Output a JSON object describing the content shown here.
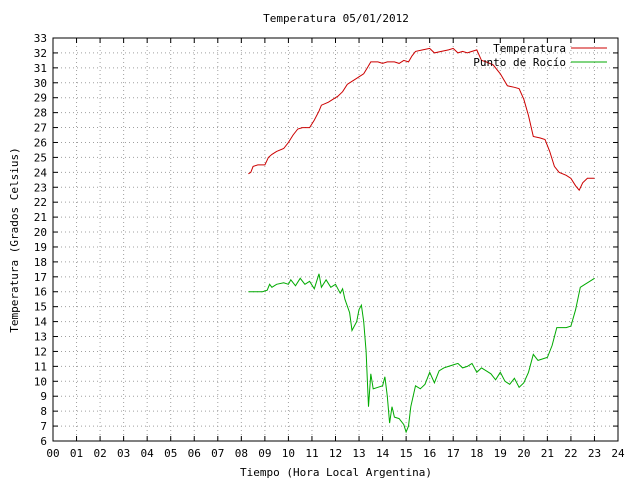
{
  "chart_data": {
    "type": "line",
    "title": "Temperatura 05/01/2012",
    "xlabel": "Tiempo (Hora Local Argentina)",
    "ylabel": "Temperatura (Grados Celsius)",
    "xlim": [
      0,
      24
    ],
    "ylim": [
      6,
      33
    ],
    "xticks": [
      "00",
      "01",
      "02",
      "03",
      "04",
      "05",
      "06",
      "07",
      "08",
      "09",
      "10",
      "11",
      "12",
      "13",
      "14",
      "15",
      "16",
      "17",
      "18",
      "19",
      "20",
      "21",
      "22",
      "23",
      "24"
    ],
    "yticks": [
      6,
      7,
      8,
      9,
      10,
      11,
      12,
      13,
      14,
      15,
      16,
      17,
      18,
      19,
      20,
      21,
      22,
      23,
      24,
      25,
      26,
      27,
      28,
      29,
      30,
      31,
      32,
      33
    ],
    "grid": true,
    "legend_position": "top-right",
    "series": [
      {
        "name": "Temperatura",
        "color": "#cc0000",
        "points": [
          [
            8.3,
            23.9
          ],
          [
            8.4,
            24.0
          ],
          [
            8.5,
            24.4
          ],
          [
            8.7,
            24.5
          ],
          [
            9.0,
            24.5
          ],
          [
            9.15,
            25.0
          ],
          [
            9.3,
            25.2
          ],
          [
            9.5,
            25.4
          ],
          [
            9.8,
            25.6
          ],
          [
            10.0,
            26.0
          ],
          [
            10.2,
            26.5
          ],
          [
            10.4,
            26.9
          ],
          [
            10.6,
            27.0
          ],
          [
            10.9,
            27.0
          ],
          [
            11.1,
            27.5
          ],
          [
            11.3,
            28.1
          ],
          [
            11.4,
            28.5
          ],
          [
            11.7,
            28.7
          ],
          [
            11.9,
            28.9
          ],
          [
            12.1,
            29.1
          ],
          [
            12.3,
            29.4
          ],
          [
            12.5,
            29.9
          ],
          [
            12.7,
            30.1
          ],
          [
            12.9,
            30.3
          ],
          [
            13.0,
            30.4
          ],
          [
            13.2,
            30.6
          ],
          [
            13.35,
            31.0
          ],
          [
            13.5,
            31.4
          ],
          [
            13.8,
            31.4
          ],
          [
            14.0,
            31.3
          ],
          [
            14.2,
            31.4
          ],
          [
            14.5,
            31.4
          ],
          [
            14.7,
            31.3
          ],
          [
            14.9,
            31.5
          ],
          [
            15.1,
            31.4
          ],
          [
            15.25,
            31.8
          ],
          [
            15.4,
            32.1
          ],
          [
            15.7,
            32.2
          ],
          [
            16.0,
            32.3
          ],
          [
            16.2,
            32.0
          ],
          [
            16.5,
            32.1
          ],
          [
            16.8,
            32.2
          ],
          [
            17.0,
            32.3
          ],
          [
            17.2,
            32.0
          ],
          [
            17.4,
            32.1
          ],
          [
            17.6,
            32.0
          ],
          [
            17.8,
            32.1
          ],
          [
            18.0,
            32.2
          ],
          [
            18.2,
            31.5
          ],
          [
            18.4,
            31.4
          ],
          [
            18.7,
            31.2
          ],
          [
            19.0,
            30.6
          ],
          [
            19.3,
            29.8
          ],
          [
            19.6,
            29.7
          ],
          [
            19.8,
            29.6
          ],
          [
            20.0,
            28.9
          ],
          [
            20.2,
            27.8
          ],
          [
            20.4,
            26.4
          ],
          [
            20.7,
            26.3
          ],
          [
            20.9,
            26.2
          ],
          [
            21.1,
            25.4
          ],
          [
            21.3,
            24.4
          ],
          [
            21.5,
            24.0
          ],
          [
            21.8,
            23.8
          ],
          [
            22.0,
            23.6
          ],
          [
            22.2,
            23.1
          ],
          [
            22.35,
            22.8
          ],
          [
            22.5,
            23.3
          ],
          [
            22.7,
            23.6
          ],
          [
            23.0,
            23.6
          ]
        ]
      },
      {
        "name": "Punto de Rocío",
        "color": "#00aa00",
        "points": [
          [
            8.3,
            16.0
          ],
          [
            8.6,
            16.0
          ],
          [
            8.9,
            16.0
          ],
          [
            9.1,
            16.1
          ],
          [
            9.2,
            16.5
          ],
          [
            9.3,
            16.3
          ],
          [
            9.5,
            16.5
          ],
          [
            9.8,
            16.6
          ],
          [
            10.0,
            16.5
          ],
          [
            10.1,
            16.8
          ],
          [
            10.3,
            16.4
          ],
          [
            10.5,
            16.9
          ],
          [
            10.7,
            16.5
          ],
          [
            10.9,
            16.7
          ],
          [
            11.1,
            16.2
          ],
          [
            11.3,
            17.2
          ],
          [
            11.4,
            16.3
          ],
          [
            11.6,
            16.8
          ],
          [
            11.8,
            16.3
          ],
          [
            12.0,
            16.5
          ],
          [
            12.2,
            15.9
          ],
          [
            12.3,
            16.2
          ],
          [
            12.4,
            15.5
          ],
          [
            12.6,
            14.6
          ],
          [
            12.7,
            13.4
          ],
          [
            12.9,
            14.0
          ],
          [
            13.0,
            14.8
          ],
          [
            13.1,
            15.1
          ],
          [
            13.2,
            14.0
          ],
          [
            13.3,
            12.0
          ],
          [
            13.4,
            8.3
          ],
          [
            13.5,
            10.5
          ],
          [
            13.6,
            9.5
          ],
          [
            13.8,
            9.6
          ],
          [
            14.0,
            9.7
          ],
          [
            14.1,
            10.3
          ],
          [
            14.2,
            9.0
          ],
          [
            14.3,
            7.2
          ],
          [
            14.4,
            8.3
          ],
          [
            14.5,
            7.6
          ],
          [
            14.7,
            7.5
          ],
          [
            14.9,
            7.1
          ],
          [
            15.0,
            6.6
          ],
          [
            15.1,
            7.0
          ],
          [
            15.2,
            8.3
          ],
          [
            15.4,
            9.7
          ],
          [
            15.6,
            9.5
          ],
          [
            15.8,
            9.8
          ],
          [
            16.0,
            10.6
          ],
          [
            16.2,
            9.9
          ],
          [
            16.4,
            10.7
          ],
          [
            16.6,
            10.9
          ],
          [
            16.8,
            11.0
          ],
          [
            17.0,
            11.1
          ],
          [
            17.2,
            11.2
          ],
          [
            17.4,
            10.9
          ],
          [
            17.6,
            11.0
          ],
          [
            17.8,
            11.2
          ],
          [
            18.0,
            10.6
          ],
          [
            18.2,
            10.9
          ],
          [
            18.4,
            10.7
          ],
          [
            18.6,
            10.5
          ],
          [
            18.8,
            10.1
          ],
          [
            19.0,
            10.6
          ],
          [
            19.2,
            10.0
          ],
          [
            19.4,
            9.8
          ],
          [
            19.6,
            10.2
          ],
          [
            19.8,
            9.6
          ],
          [
            20.0,
            9.9
          ],
          [
            20.2,
            10.6
          ],
          [
            20.4,
            11.8
          ],
          [
            20.6,
            11.4
          ],
          [
            20.8,
            11.5
          ],
          [
            21.0,
            11.6
          ],
          [
            21.2,
            12.4
          ],
          [
            21.4,
            13.6
          ],
          [
            21.6,
            13.6
          ],
          [
            21.8,
            13.6
          ],
          [
            22.0,
            13.7
          ],
          [
            22.2,
            14.8
          ],
          [
            22.4,
            16.3
          ],
          [
            22.6,
            16.5
          ],
          [
            22.8,
            16.7
          ],
          [
            23.0,
            16.9
          ]
        ]
      }
    ]
  }
}
